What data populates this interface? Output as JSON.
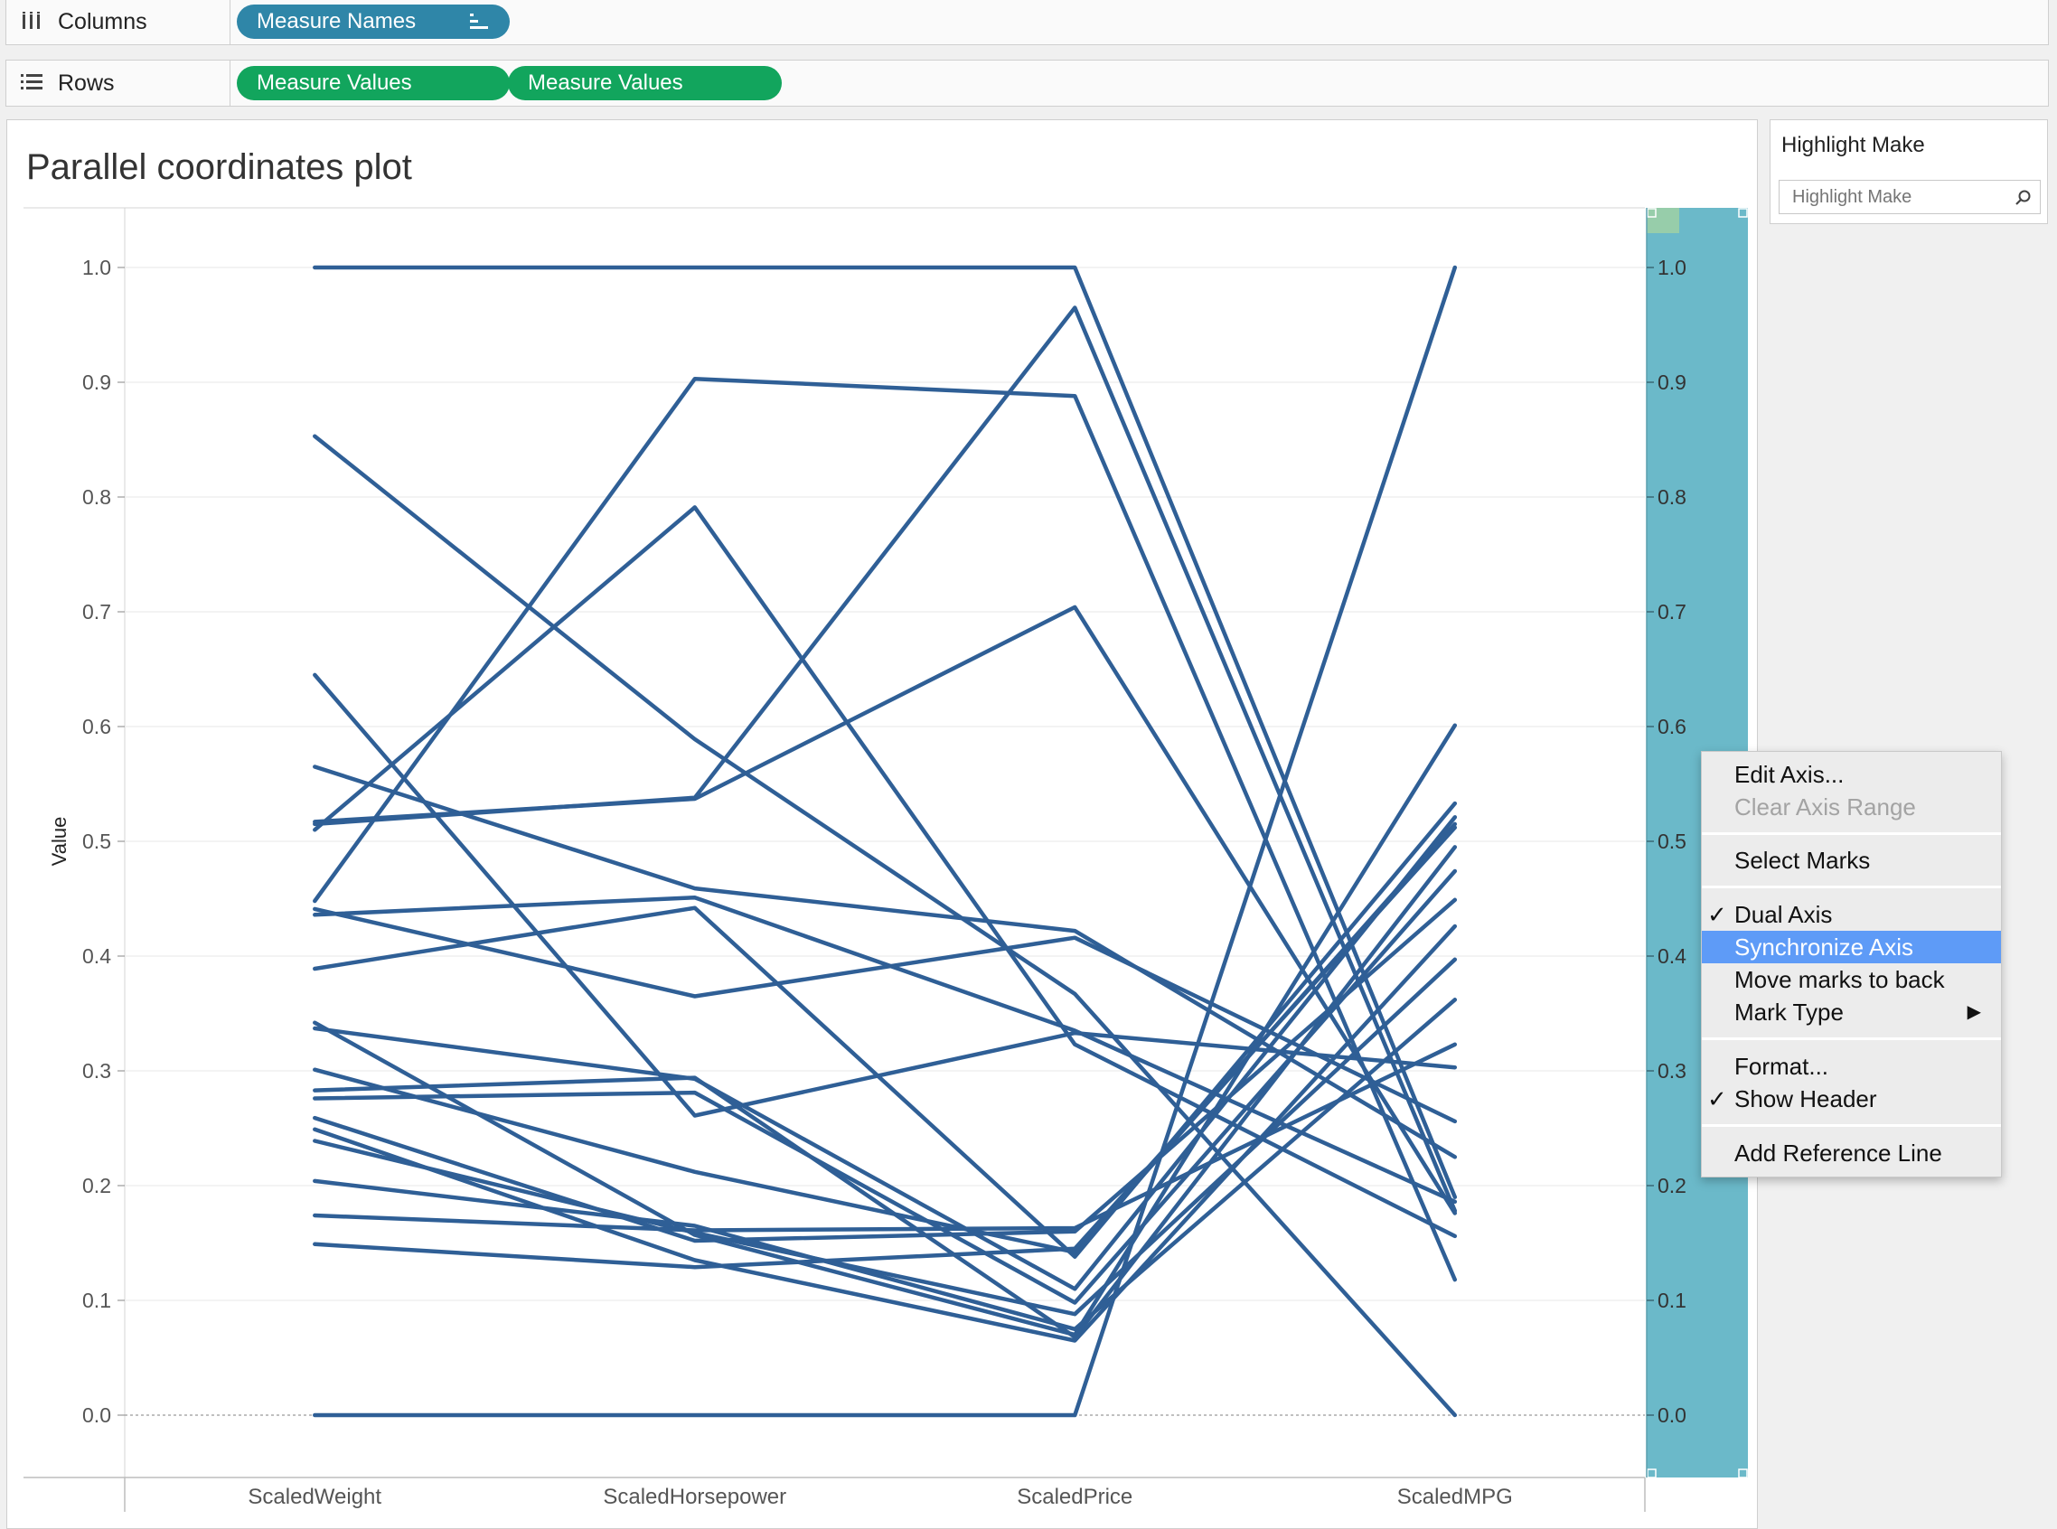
{
  "shelves": {
    "columns": {
      "label": "Columns",
      "icon": "columns-icon",
      "pills": [
        "Measure Names"
      ]
    },
    "rows": {
      "label": "Rows",
      "icon": "rows-icon",
      "pills": [
        "Measure Values",
        "Measure Values"
      ]
    }
  },
  "view": {
    "title": "Parallel coordinates plot"
  },
  "highlight": {
    "title": "Highlight Make",
    "placeholder": "Highlight Make"
  },
  "context_menu": {
    "items": [
      {
        "label": "Edit Axis...",
        "enabled": true,
        "checked": false
      },
      {
        "label": "Clear Axis Range",
        "enabled": false,
        "checked": false
      },
      {
        "label": "Select Marks",
        "enabled": true,
        "checked": false
      },
      {
        "label": "Dual Axis",
        "enabled": true,
        "checked": true
      },
      {
        "label": "Synchronize Axis",
        "enabled": true,
        "checked": false,
        "highlighted": true
      },
      {
        "label": "Move marks to back",
        "enabled": true,
        "checked": false
      },
      {
        "label": "Mark Type",
        "enabled": true,
        "checked": false,
        "submenu": true
      },
      {
        "label": "Format...",
        "enabled": true,
        "checked": false
      },
      {
        "label": "Show Header",
        "enabled": true,
        "checked": true
      },
      {
        "label": "Add Reference Line",
        "enabled": true,
        "checked": false
      }
    ],
    "check_glyph": "✓",
    "submenu_glyph": "▶"
  },
  "colors": {
    "line": "#2f5f96",
    "dual_axis_band": "#6bb9c9",
    "pill_blue": "#2f86a8",
    "pill_green": "#12a55d"
  },
  "chart_data": {
    "type": "line",
    "title": "",
    "ylabel": "Value",
    "categories": [
      "ScaledWeight",
      "ScaledHorsepower",
      "ScaledPrice",
      "ScaledMPG"
    ],
    "ylim": [
      0,
      1.0
    ],
    "y_ticks": [
      "0.0",
      "0.1",
      "0.2",
      "0.3",
      "0.4",
      "0.5",
      "0.6",
      "0.7",
      "0.8",
      "0.9",
      "1.0"
    ],
    "y_ticks_secondary": [
      "0.0",
      "0.1",
      "0.2",
      "0.3",
      "0.4",
      "0.5",
      "0.6",
      "0.7",
      "0.8",
      "0.9",
      "1.0"
    ],
    "grid": true,
    "series": [
      {
        "values": [
          1.0,
          1.0,
          1.0,
          0.19
        ]
      },
      {
        "values": [
          0.0,
          0.0,
          0.0,
          1.0
        ]
      },
      {
        "values": [
          0.853,
          0.589,
          0.367,
          0.0
        ]
      },
      {
        "values": [
          0.51,
          0.791,
          0.323,
          0.156
        ]
      },
      {
        "values": [
          0.448,
          0.903,
          0.888,
          0.118
        ]
      },
      {
        "values": [
          0.645,
          0.261,
          0.333,
          0.303
        ]
      },
      {
        "values": [
          0.565,
          0.459,
          0.422,
          0.225
        ]
      },
      {
        "values": [
          0.517,
          0.537,
          0.704,
          0.176
        ]
      },
      {
        "values": [
          0.436,
          0.451,
          0.335,
          0.186
        ]
      },
      {
        "values": [
          0.441,
          0.365,
          0.416,
          0.256
        ]
      },
      {
        "values": [
          0.389,
          0.442,
          0.138,
          0.533
        ]
      },
      {
        "values": [
          0.342,
          0.157,
          0.07,
          0.601
        ]
      },
      {
        "values": [
          0.337,
          0.293,
          0.11,
          0.521
        ]
      },
      {
        "values": [
          0.301,
          0.212,
          0.142,
          0.515
        ]
      },
      {
        "values": [
          0.283,
          0.294,
          0.068,
          0.495
        ]
      },
      {
        "values": [
          0.276,
          0.281,
          0.098,
          0.474
        ]
      },
      {
        "values": [
          0.259,
          0.152,
          0.16,
          0.449
        ]
      },
      {
        "values": [
          0.249,
          0.135,
          0.065,
          0.426
        ]
      },
      {
        "values": [
          0.239,
          0.159,
          0.088,
          0.397
        ]
      },
      {
        "values": [
          0.204,
          0.165,
          0.075,
          0.362
        ]
      },
      {
        "values": [
          0.174,
          0.161,
          0.163,
          0.323
        ]
      },
      {
        "values": [
          0.149,
          0.129,
          0.145,
          0.512
        ]
      },
      {
        "values": [
          0.515,
          0.538,
          0.965,
          0.178
        ]
      }
    ]
  }
}
